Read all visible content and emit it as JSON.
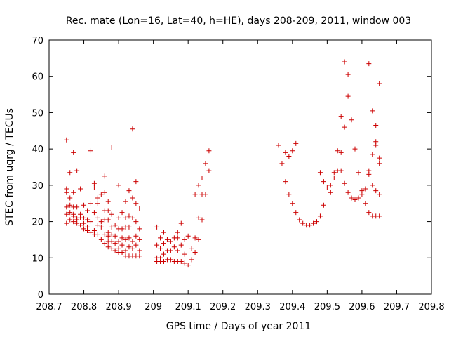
{
  "chart_data": {
    "type": "scatter",
    "title": "Rec. mate (Lon=16, Lat=40, h=HE), days 208-209, 2011, window 003",
    "xlabel": "GPS time / Days of year 2011",
    "ylabel": "STEC from uqrg / TECUs",
    "xlim": [
      208.7,
      209.8
    ],
    "ylim": [
      0,
      70
    ],
    "xticks": [
      208.7,
      208.8,
      208.9,
      209.0,
      209.1,
      209.2,
      209.3,
      209.4,
      209.5,
      209.6,
      209.7,
      209.8
    ],
    "xtick_labels": [
      "208.7",
      "208.8",
      "208.9",
      "209",
      "209.1",
      "209.2",
      "209.3",
      "209.4",
      "209.5",
      "209.6",
      "209.7",
      "209.8"
    ],
    "yticks": [
      0,
      10,
      20,
      30,
      40,
      50,
      60,
      70
    ],
    "ytick_labels": [
      "0",
      "10",
      "20",
      "30",
      "40",
      "50",
      "60",
      "70"
    ],
    "grid": false,
    "marker": "+",
    "color": "#cc0000",
    "series": [
      {
        "name": "STEC",
        "points": [
          [
            208.75,
            42.5
          ],
          [
            208.75,
            29.0
          ],
          [
            208.75,
            28.0
          ],
          [
            208.75,
            24.0
          ],
          [
            208.75,
            22.0
          ],
          [
            208.75,
            19.5
          ],
          [
            208.76,
            33.5
          ],
          [
            208.76,
            26.5
          ],
          [
            208.76,
            24.5
          ],
          [
            208.76,
            22.5
          ],
          [
            208.76,
            20.5
          ],
          [
            208.77,
            39.0
          ],
          [
            208.77,
            28.0
          ],
          [
            208.77,
            24.0
          ],
          [
            208.77,
            22.0
          ],
          [
            208.77,
            21.5
          ],
          [
            208.77,
            20.0
          ],
          [
            208.78,
            34.0
          ],
          [
            208.78,
            24.0
          ],
          [
            208.78,
            21.0
          ],
          [
            208.78,
            20.5
          ],
          [
            208.78,
            19.5
          ],
          [
            208.79,
            29.0
          ],
          [
            208.79,
            22.0
          ],
          [
            208.79,
            21.0
          ],
          [
            208.79,
            19.0
          ],
          [
            208.8,
            24.5
          ],
          [
            208.8,
            21.0
          ],
          [
            208.8,
            19.5
          ],
          [
            208.8,
            18.0
          ],
          [
            208.81,
            23.0
          ],
          [
            208.81,
            20.5
          ],
          [
            208.81,
            18.5
          ],
          [
            208.81,
            17.5
          ],
          [
            208.82,
            39.5
          ],
          [
            208.82,
            25.0
          ],
          [
            208.82,
            20.0
          ],
          [
            208.82,
            17.0
          ],
          [
            208.83,
            30.5
          ],
          [
            208.83,
            29.5
          ],
          [
            208.83,
            22.5
          ],
          [
            208.83,
            17.5
          ],
          [
            208.83,
            16.5
          ],
          [
            208.84,
            26.5
          ],
          [
            208.84,
            25.0
          ],
          [
            208.84,
            21.0
          ],
          [
            208.84,
            19.0
          ],
          [
            208.84,
            16.5
          ],
          [
            208.85,
            27.5
          ],
          [
            208.85,
            20.0
          ],
          [
            208.85,
            18.5
          ],
          [
            208.85,
            15.0
          ],
          [
            208.86,
            32.5
          ],
          [
            208.86,
            28.0
          ],
          [
            208.86,
            23.0
          ],
          [
            208.86,
            20.5
          ],
          [
            208.86,
            16.5
          ],
          [
            208.86,
            14.0
          ],
          [
            208.87,
            25.5
          ],
          [
            208.87,
            23.0
          ],
          [
            208.87,
            20.5
          ],
          [
            208.87,
            17.0
          ],
          [
            208.87,
            16.0
          ],
          [
            208.87,
            14.5
          ],
          [
            208.87,
            13.0
          ],
          [
            208.88,
            40.5
          ],
          [
            208.88,
            22.0
          ],
          [
            208.88,
            18.5
          ],
          [
            208.88,
            16.5
          ],
          [
            208.88,
            14.5
          ],
          [
            208.88,
            12.5
          ],
          [
            208.89,
            19.0
          ],
          [
            208.89,
            16.0
          ],
          [
            208.89,
            14.0
          ],
          [
            208.89,
            12.0
          ],
          [
            208.9,
            30.0
          ],
          [
            208.9,
            21.0
          ],
          [
            208.9,
            18.0
          ],
          [
            208.9,
            14.5
          ],
          [
            208.9,
            12.5
          ],
          [
            208.9,
            11.5
          ],
          [
            208.91,
            22.5
          ],
          [
            208.91,
            18.0
          ],
          [
            208.91,
            15.5
          ],
          [
            208.91,
            13.5
          ],
          [
            208.91,
            11.5
          ],
          [
            208.92,
            25.5
          ],
          [
            208.92,
            21.0
          ],
          [
            208.92,
            18.5
          ],
          [
            208.92,
            15.0
          ],
          [
            208.92,
            12.0
          ],
          [
            208.92,
            10.5
          ],
          [
            208.93,
            28.5
          ],
          [
            208.93,
            21.5
          ],
          [
            208.93,
            18.5
          ],
          [
            208.93,
            15.5
          ],
          [
            208.93,
            13.0
          ],
          [
            208.93,
            10.5
          ],
          [
            208.94,
            45.5
          ],
          [
            208.94,
            26.5
          ],
          [
            208.94,
            21.0
          ],
          [
            208.94,
            14.5
          ],
          [
            208.94,
            12.5
          ],
          [
            208.94,
            10.5
          ],
          [
            208.95,
            31.0
          ],
          [
            208.95,
            25.0
          ],
          [
            208.95,
            20.0
          ],
          [
            208.95,
            16.0
          ],
          [
            208.95,
            13.5
          ],
          [
            208.95,
            10.5
          ],
          [
            208.96,
            23.5
          ],
          [
            208.96,
            18.0
          ],
          [
            208.96,
            15.0
          ],
          [
            208.96,
            12.0
          ],
          [
            208.96,
            10.5
          ],
          [
            209.01,
            18.5
          ],
          [
            209.01,
            13.5
          ],
          [
            209.01,
            10.0
          ],
          [
            209.01,
            9.0
          ],
          [
            209.02,
            15.5
          ],
          [
            209.02,
            12.5
          ],
          [
            209.02,
            10.0
          ],
          [
            209.02,
            9.0
          ],
          [
            209.03,
            17.0
          ],
          [
            209.03,
            14.0
          ],
          [
            209.03,
            11.0
          ],
          [
            209.03,
            9.0
          ],
          [
            209.04,
            15.0
          ],
          [
            209.04,
            12.0
          ],
          [
            209.04,
            9.5
          ],
          [
            209.05,
            14.5
          ],
          [
            209.05,
            12.0
          ],
          [
            209.05,
            9.5
          ],
          [
            209.06,
            15.5
          ],
          [
            209.06,
            13.0
          ],
          [
            209.06,
            9.0
          ],
          [
            209.07,
            17.0
          ],
          [
            209.07,
            15.5
          ],
          [
            209.07,
            12.0
          ],
          [
            209.07,
            9.0
          ],
          [
            209.08,
            19.5
          ],
          [
            209.08,
            13.5
          ],
          [
            209.08,
            9.0
          ],
          [
            209.09,
            15.0
          ],
          [
            209.09,
            11.0
          ],
          [
            209.09,
            8.5
          ],
          [
            209.1,
            16.0
          ],
          [
            209.1,
            8.0
          ],
          [
            209.11,
            12.5
          ],
          [
            209.11,
            9.5
          ],
          [
            209.12,
            27.5
          ],
          [
            209.12,
            15.5
          ],
          [
            209.12,
            11.5
          ],
          [
            209.13,
            30.0
          ],
          [
            209.13,
            21.0
          ],
          [
            209.13,
            15.0
          ],
          [
            209.14,
            32.0
          ],
          [
            209.14,
            27.5
          ],
          [
            209.14,
            20.5
          ],
          [
            209.15,
            36.0
          ],
          [
            209.15,
            27.5
          ],
          [
            209.16,
            34.0
          ],
          [
            209.16,
            39.5
          ],
          [
            209.36,
            41.0
          ],
          [
            209.37,
            36.0
          ],
          [
            209.38,
            39.0
          ],
          [
            209.38,
            31.0
          ],
          [
            209.39,
            38.0
          ],
          [
            209.39,
            27.5
          ],
          [
            209.4,
            39.5
          ],
          [
            209.4,
            25.0
          ],
          [
            209.41,
            41.5
          ],
          [
            209.41,
            22.5
          ],
          [
            209.42,
            20.5
          ],
          [
            209.43,
            19.5
          ],
          [
            209.44,
            19.0
          ],
          [
            209.45,
            19.0
          ],
          [
            209.46,
            19.5
          ],
          [
            209.47,
            20.0
          ],
          [
            209.48,
            33.5
          ],
          [
            209.48,
            21.5
          ],
          [
            209.49,
            31.0
          ],
          [
            209.49,
            24.5
          ],
          [
            209.5,
            29.5
          ],
          [
            209.51,
            30.0
          ],
          [
            209.51,
            28.0
          ],
          [
            209.52,
            33.5
          ],
          [
            209.52,
            32.0
          ],
          [
            209.53,
            39.5
          ],
          [
            209.53,
            34.0
          ],
          [
            209.54,
            49.0
          ],
          [
            209.54,
            39.0
          ],
          [
            209.54,
            34.0
          ],
          [
            209.55,
            64.0
          ],
          [
            209.55,
            46.0
          ],
          [
            209.55,
            30.5
          ],
          [
            209.56,
            60.5
          ],
          [
            209.56,
            54.5
          ],
          [
            209.56,
            28.0
          ],
          [
            209.57,
            48.0
          ],
          [
            209.57,
            26.5
          ],
          [
            209.58,
            40.0
          ],
          [
            209.58,
            26.0
          ],
          [
            209.59,
            33.5
          ],
          [
            209.59,
            26.5
          ],
          [
            209.6,
            28.5
          ],
          [
            209.6,
            27.5
          ],
          [
            209.61,
            29.0
          ],
          [
            209.61,
            25.0
          ],
          [
            209.62,
            63.5
          ],
          [
            209.62,
            34.0
          ],
          [
            209.62,
            33.0
          ],
          [
            209.62,
            22.5
          ],
          [
            209.63,
            50.5
          ],
          [
            209.63,
            38.5
          ],
          [
            209.63,
            30.0
          ],
          [
            209.63,
            21.5
          ],
          [
            209.64,
            46.5
          ],
          [
            209.64,
            42.0
          ],
          [
            209.64,
            41.0
          ],
          [
            209.64,
            28.5
          ],
          [
            209.64,
            21.5
          ],
          [
            209.65,
            58.0
          ],
          [
            209.65,
            37.5
          ],
          [
            209.65,
            36.0
          ],
          [
            209.65,
            27.5
          ],
          [
            209.65,
            21.5
          ]
        ]
      }
    ]
  }
}
